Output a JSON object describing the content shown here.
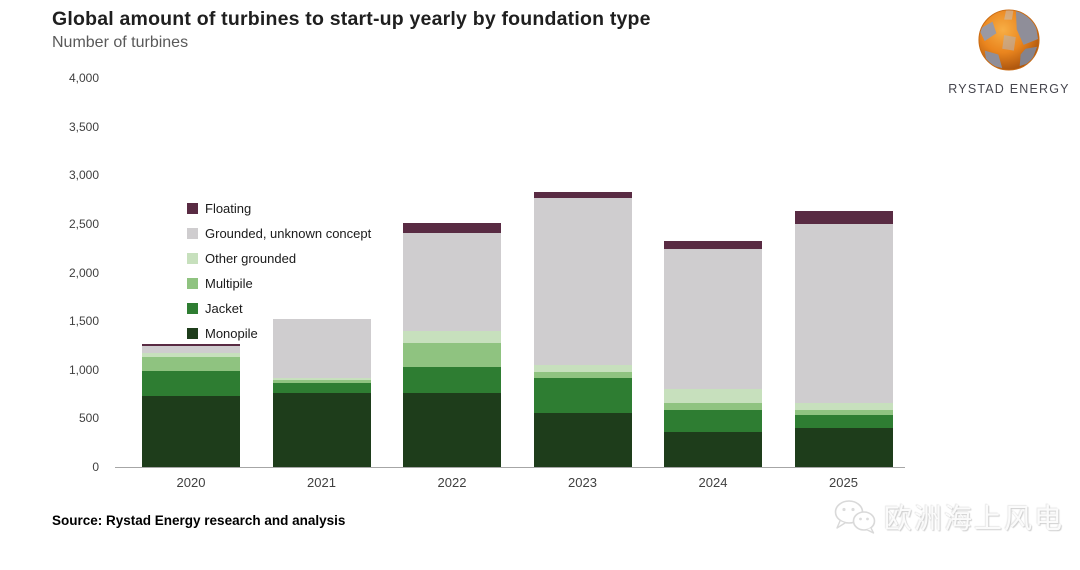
{
  "header": {
    "title": "Global amount of turbines to start-up yearly by foundation type",
    "subtitle": "Number of turbines"
  },
  "logo": {
    "name": "Rystad Energy",
    "text": "RYSTAD ENERGY"
  },
  "chart_data": {
    "type": "bar",
    "stacked": true,
    "title": "Global amount of turbines to start-up yearly by foundation type",
    "ylabel": "Number of turbines",
    "xlabel": "",
    "categories": [
      "2020",
      "2021",
      "2022",
      "2023",
      "2024",
      "2025"
    ],
    "series": [
      {
        "name": "Monopile",
        "color": "#1e3d1b",
        "values": [
          730,
          760,
          760,
          560,
          360,
          400
        ]
      },
      {
        "name": "Jacket",
        "color": "#2e7d32",
        "values": [
          260,
          100,
          270,
          360,
          230,
          130
        ]
      },
      {
        "name": "Multipile",
        "color": "#8fc380",
        "values": [
          145,
          30,
          250,
          60,
          70,
          60
        ]
      },
      {
        "name": "Other grounded",
        "color": "#c7e0bd",
        "values": [
          40,
          30,
          120,
          70,
          140,
          70
        ]
      },
      {
        "name": "Grounded, unknown concept",
        "color": "#cfcdcf",
        "values": [
          70,
          600,
          1010,
          1720,
          1440,
          1840
        ]
      },
      {
        "name": "Floating",
        "color": "#592b43",
        "values": [
          20,
          0,
          100,
          60,
          80,
          130
        ]
      }
    ],
    "totals": [
      1265,
      1520,
      2510,
      2830,
      2320,
      2630
    ],
    "legend_order_top_to_bottom": [
      "Floating",
      "Grounded, unknown concept",
      "Other grounded",
      "Multipile",
      "Jacket",
      "Monopile"
    ],
    "ylim": [
      0,
      4000
    ],
    "yticks": [
      {
        "value": 0,
        "label": "0"
      },
      {
        "value": 500,
        "label": "500"
      },
      {
        "value": 1000,
        "label": "1,000"
      },
      {
        "value": 1500,
        "label": "1,500"
      },
      {
        "value": 2000,
        "label": "2,000"
      },
      {
        "value": 2500,
        "label": "2,500"
      },
      {
        "value": 3000,
        "label": "3,000"
      },
      {
        "value": 3500,
        "label": "3,500"
      },
      {
        "value": 4000,
        "label": "4,000"
      }
    ],
    "grid": false,
    "legend_position": "inside-top-left"
  },
  "footer": {
    "source": "Source: Rystad Energy research and analysis"
  },
  "watermark": {
    "icon": "wechat-icon",
    "text": "欧洲海上风电"
  }
}
